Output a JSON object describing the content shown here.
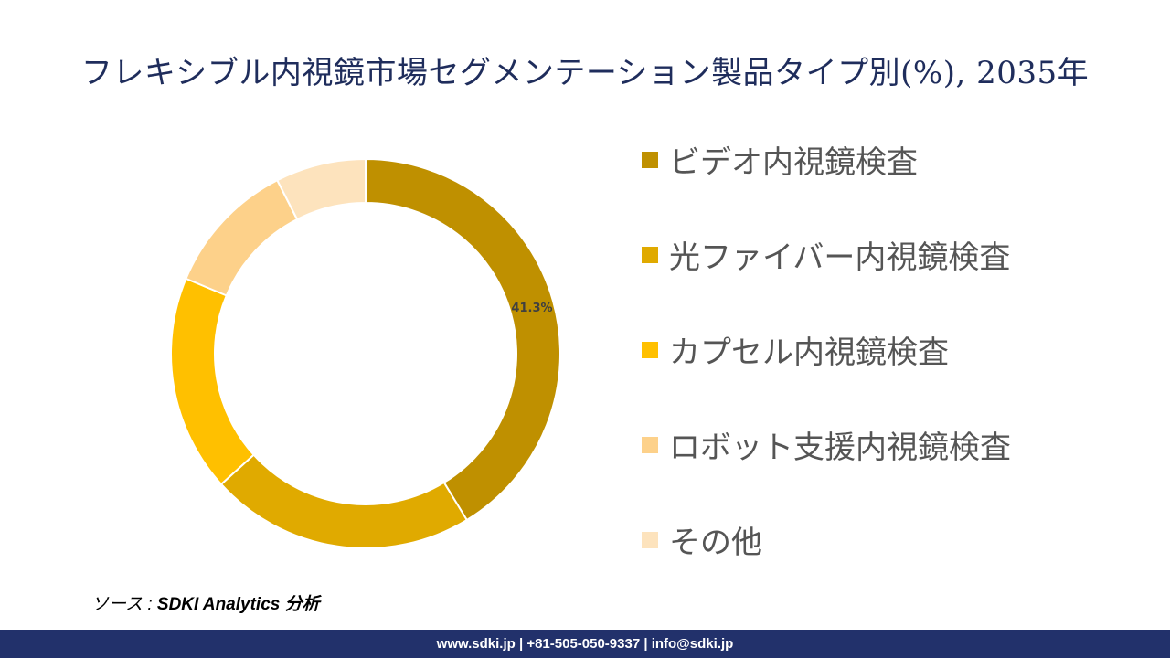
{
  "page": {
    "title": "フレキシブル内視鏡市場セグメンテーション製品タイプ別(%), 2035年",
    "source_prefix": "ソース : ",
    "source_value": "SDKI Analytics 分析",
    "footer": "www.sdki.jp | +81-505-050-9337 | info@sdki.jp"
  },
  "chart_data": {
    "type": "pie",
    "title": "フレキシブル内視鏡市場セグメンテーション製品タイプ別(%), 2035年",
    "categories": [
      "ビデオ内視鏡検査",
      "光ファイバー内視鏡検査",
      "カプセル内視鏡検査",
      "ロボット支援内視鏡検査",
      "その他"
    ],
    "values": [
      41.3,
      22.0,
      18.0,
      11.2,
      7.5
    ],
    "colors": [
      "#bf9000",
      "#e0aa00",
      "#ffc000",
      "#fdd18a",
      "#fde3bd"
    ],
    "data_labels": [
      "41.3%",
      "",
      "",
      "",
      ""
    ],
    "donut": true,
    "legend_position": "right"
  }
}
